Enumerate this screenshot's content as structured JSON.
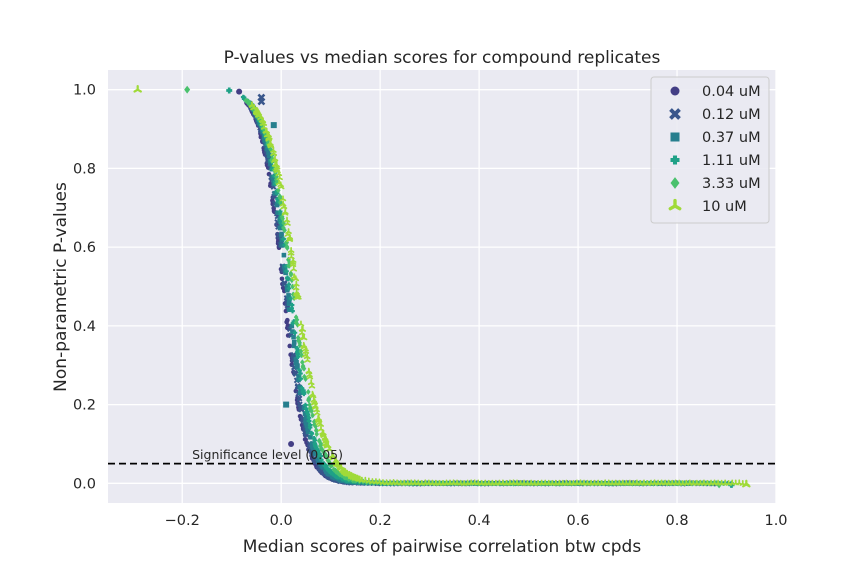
{
  "chart_data": {
    "type": "scatter",
    "title": "P-values vs median scores for compound replicates",
    "xlabel": "Median scores of pairwise correlation btw cpds",
    "ylabel": "Non-parametric P-values",
    "xlim": [
      -0.35,
      1.0
    ],
    "ylim": [
      -0.05,
      1.05
    ],
    "xticks": [
      -0.2,
      0.0,
      0.2,
      0.4,
      0.6,
      0.8,
      1.0
    ],
    "xtick_labels": [
      "−0.2",
      "0.0",
      "0.2",
      "0.4",
      "0.6",
      "0.8",
      "1.0"
    ],
    "yticks": [
      0.0,
      0.2,
      0.4,
      0.6,
      0.8,
      1.0
    ],
    "ytick_labels": [
      "0.0",
      "0.2",
      "0.4",
      "0.6",
      "0.8",
      "1.0"
    ],
    "grid": true,
    "legend_position": "top-right",
    "background": "#eaeaf2",
    "reference_line": {
      "y": 0.05,
      "style": "dashed",
      "color": "#000000",
      "label": "Significance level (0.05)",
      "label_x": -0.18,
      "label_y": 0.062
    },
    "series": [
      {
        "name": "0.04 uM",
        "marker": "circle",
        "color": "#433e85",
        "center": 0.004,
        "width": 0.022,
        "xmin": -0.09,
        "xmax": 0.88,
        "n": 260,
        "outliers": [
          [
            -0.085,
            0.995
          ],
          [
            0.02,
            0.1
          ]
        ]
      },
      {
        "name": "0.12 uM",
        "marker": "x",
        "color": "#39568c",
        "center": 0.008,
        "width": 0.022,
        "xmin": -0.085,
        "xmax": 0.88,
        "n": 260,
        "outliers": [
          [
            -0.04,
            0.98
          ],
          [
            -0.04,
            0.97
          ]
        ]
      },
      {
        "name": "0.37 uM",
        "marker": "square",
        "color": "#277f8e",
        "center": 0.012,
        "width": 0.023,
        "xmin": -0.08,
        "xmax": 0.86,
        "n": 260,
        "outliers": [
          [
            -0.015,
            0.91
          ],
          [
            0.01,
            0.2
          ]
        ]
      },
      {
        "name": "1.11 uM",
        "marker": "plus",
        "color": "#1fa187",
        "center": 0.016,
        "width": 0.024,
        "xmin": -0.1,
        "xmax": 0.91,
        "n": 260,
        "outliers": [
          [
            -0.105,
            0.998
          ],
          [
            0.91,
            -0.004
          ]
        ]
      },
      {
        "name": "3.33 uM",
        "marker": "diamond",
        "color": "#4ac16d",
        "center": 0.022,
        "width": 0.026,
        "xmin": -0.19,
        "xmax": 0.88,
        "n": 280,
        "outliers": [
          [
            -0.19,
            1.0
          ],
          [
            0.885,
            -0.003
          ]
        ]
      },
      {
        "name": "10 uM",
        "marker": "tri",
        "color": "#a0da39",
        "center": 0.03,
        "width": 0.028,
        "xmin": -0.29,
        "xmax": 0.94,
        "n": 300,
        "outliers": [
          [
            -0.29,
            1.0
          ],
          [
            0.94,
            -0.003
          ]
        ]
      }
    ]
  }
}
